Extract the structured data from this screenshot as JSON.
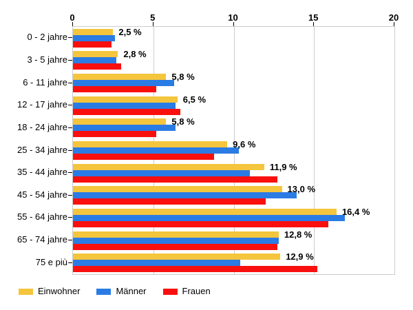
{
  "chart_data": {
    "type": "bar",
    "orientation": "horizontal",
    "title": "",
    "xlabel": "",
    "ylabel": "",
    "xlim": [
      0,
      20
    ],
    "x_ticks": [
      "0",
      "5",
      "10",
      "15",
      "20"
    ],
    "x_tick_values": [
      0,
      5,
      10,
      15,
      20
    ],
    "grid": true,
    "legend_position": "bottom",
    "categories": [
      "0 - 2 jahre",
      "3 - 5 jahre",
      "6 - 11 jahre",
      "12 - 17 jahre",
      "18 - 24 jahre",
      "25 - 34 jahre",
      "35 - 44 jahre",
      "45 - 54 jahre",
      "55 - 64 jahre",
      "65 - 74 jahre",
      "75 e più"
    ],
    "series": [
      {
        "name": "Einwohner",
        "color": "#F4C53D",
        "values": [
          2.5,
          2.8,
          5.8,
          6.5,
          5.8,
          9.6,
          11.9,
          13.0,
          16.4,
          12.8,
          12.9
        ]
      },
      {
        "name": "Männer",
        "color": "#2B7BE4",
        "values": [
          2.6,
          2.7,
          6.3,
          6.4,
          6.4,
          10.3,
          11.0,
          13.9,
          16.9,
          12.8,
          10.4
        ]
      },
      {
        "name": "Frauen",
        "color": "#FA0F0F",
        "values": [
          2.4,
          3.0,
          5.2,
          6.7,
          5.2,
          8.8,
          12.7,
          12.0,
          15.9,
          12.7,
          15.2
        ]
      }
    ],
    "value_labels": [
      "2,5 %",
      "2,8 %",
      "5,8 %",
      "6,5 %",
      "5,8 %",
      "9,6 %",
      "11,9 %",
      "13,0 %",
      "16,4 %",
      "12,8 %",
      "12,9 %"
    ],
    "value_labels_series": "Einwohner"
  },
  "colors": {
    "background": "#FFFFFF",
    "grid": "#CCCCCC",
    "axis_border": "#CCCCCC",
    "tick": "#000000",
    "text": "#000000"
  }
}
